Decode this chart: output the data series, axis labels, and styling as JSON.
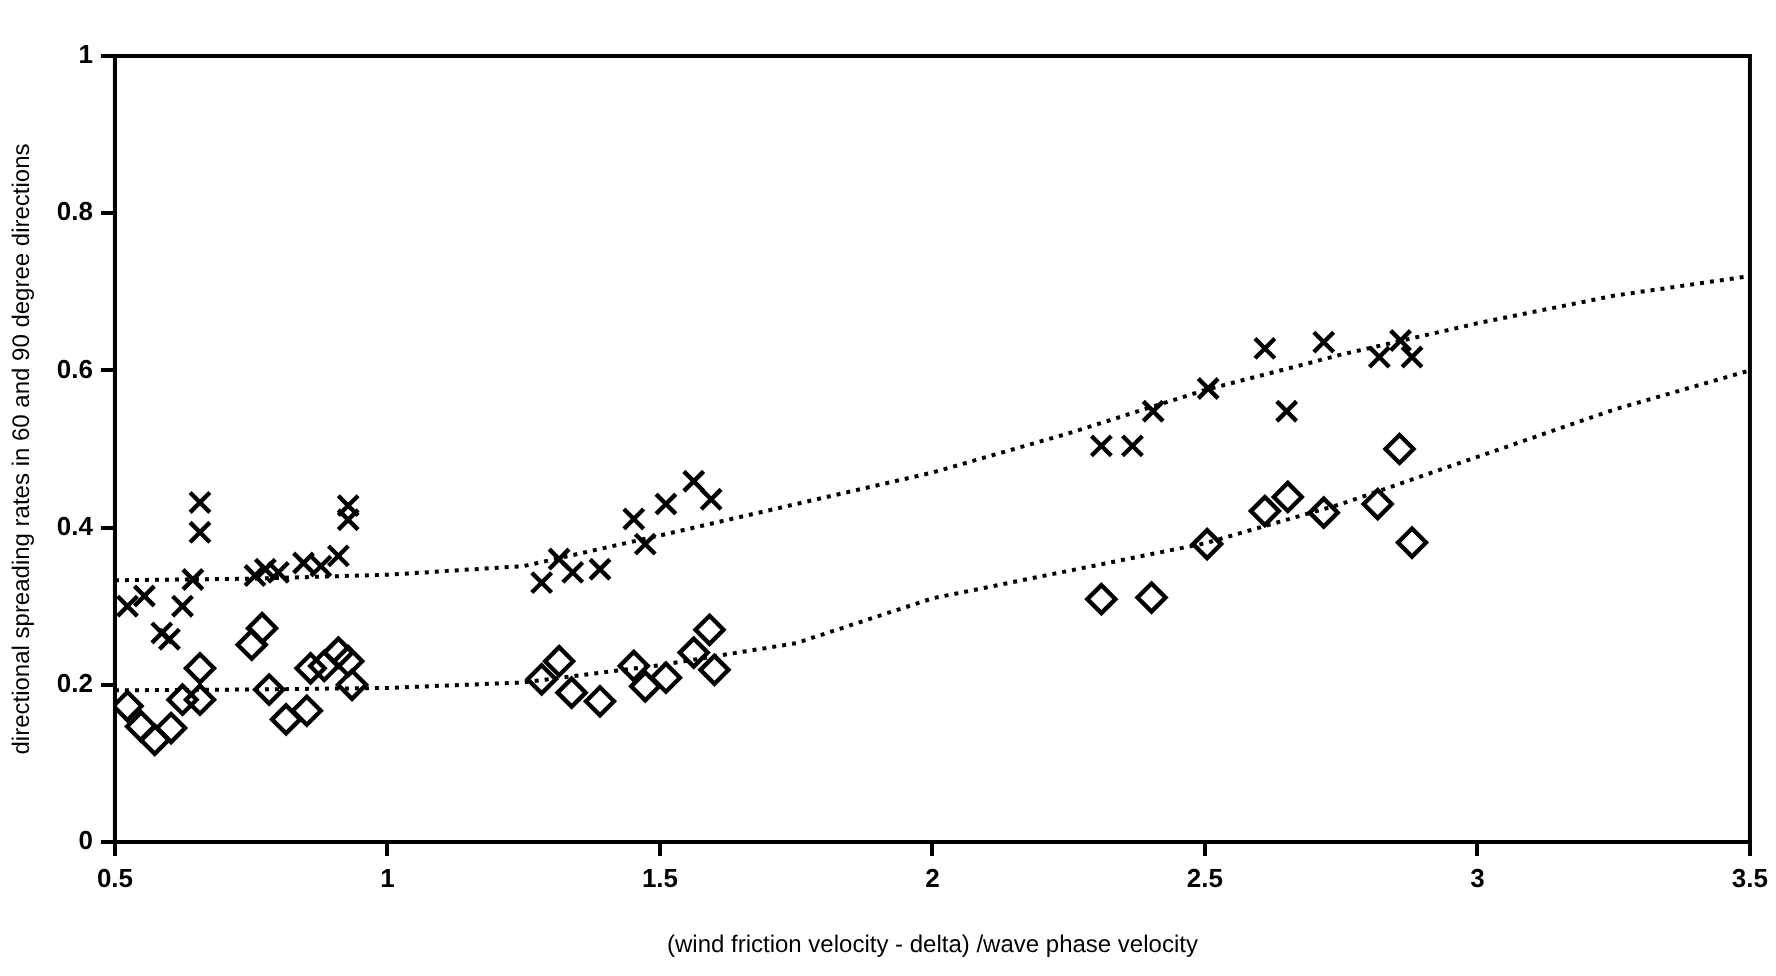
{
  "chart_data": {
    "type": "scatter",
    "xlabel": "(wind friction velocity - delta) /wave phase velocity",
    "ylabel": "directional spreading rates in 60 and 90 degree directions",
    "xlim": [
      0.5,
      3.5
    ],
    "xticks": [
      0.5,
      1,
      1.5,
      2,
      2.5,
      3,
      3.5
    ],
    "ylim": [
      0,
      1
    ],
    "yticks": [
      0,
      0.2,
      0.4,
      0.6,
      0.8,
      1
    ],
    "grid": false,
    "legend": false,
    "series": [
      {
        "color": "#000000",
        "marker": "cross",
        "x": [
          0.523,
          0.554,
          0.586,
          0.6,
          0.624,
          0.643,
          0.656,
          0.656,
          0.757,
          0.776,
          0.8,
          0.846,
          0.878,
          0.91,
          0.928,
          0.928,
          1.283,
          1.315,
          1.34,
          1.39,
          1.452,
          1.473,
          1.511,
          1.562,
          1.594,
          2.31,
          2.367,
          2.405,
          2.506,
          2.61,
          2.65,
          2.718,
          2.82,
          2.859,
          2.88
        ],
        "values": [
          0.3,
          0.313,
          0.266,
          0.258,
          0.3,
          0.334,
          0.432,
          0.394,
          0.339,
          0.347,
          0.343,
          0.355,
          0.351,
          0.364,
          0.428,
          0.41,
          0.33,
          0.36,
          0.343,
          0.347,
          0.411,
          0.379,
          0.43,
          0.459,
          0.436,
          0.504,
          0.504,
          0.548,
          0.577,
          0.628,
          0.548,
          0.636,
          0.617,
          0.638,
          0.617
        ]
      },
      {
        "color": "#000000",
        "marker": "diamond",
        "x": [
          0.523,
          0.548,
          0.573,
          0.603,
          0.624,
          0.656,
          0.656,
          0.77,
          0.751,
          0.783,
          0.814,
          0.852,
          0.859,
          0.884,
          0.91,
          0.928,
          0.935,
          1.283,
          1.315,
          1.338,
          1.39,
          1.452,
          1.473,
          1.511,
          1.562,
          1.591,
          1.6,
          2.31,
          2.402,
          2.504,
          2.61,
          2.652,
          2.718,
          2.817,
          2.857,
          2.88
        ],
        "values": [
          0.173,
          0.147,
          0.13,
          0.145,
          0.181,
          0.181,
          0.221,
          0.272,
          0.251,
          0.194,
          0.156,
          0.167,
          0.221,
          0.224,
          0.241,
          0.23,
          0.2,
          0.207,
          0.23,
          0.19,
          0.179,
          0.224,
          0.198,
          0.209,
          0.241,
          0.27,
          0.219,
          0.309,
          0.311,
          0.379,
          0.421,
          0.439,
          0.419,
          0.43,
          0.5,
          0.381
        ]
      },
      {
        "type": "line",
        "color": "#000000",
        "marker": "none",
        "line_style": "dotted",
        "x": [
          0.5,
          0.75,
          1,
          1.25,
          1.5,
          1.75,
          2,
          2.25,
          2.5,
          2.75,
          3,
          3.25,
          3.5
        ],
        "values": [
          0.333,
          0.335,
          0.34,
          0.351,
          0.39,
          0.43,
          0.47,
          0.52,
          0.575,
          0.62,
          0.66,
          0.695,
          0.72
        ]
      },
      {
        "type": "line",
        "color": "#000000",
        "marker": "none",
        "line_style": "dotted",
        "x": [
          0.5,
          0.75,
          1,
          1.25,
          1.5,
          1.75,
          2,
          2.25,
          2.5,
          2.75,
          3,
          3.25,
          3.5
        ],
        "values": [
          0.193,
          0.194,
          0.196,
          0.203,
          0.225,
          0.253,
          0.31,
          0.345,
          0.38,
          0.43,
          0.49,
          0.55,
          0.6
        ]
      }
    ]
  }
}
